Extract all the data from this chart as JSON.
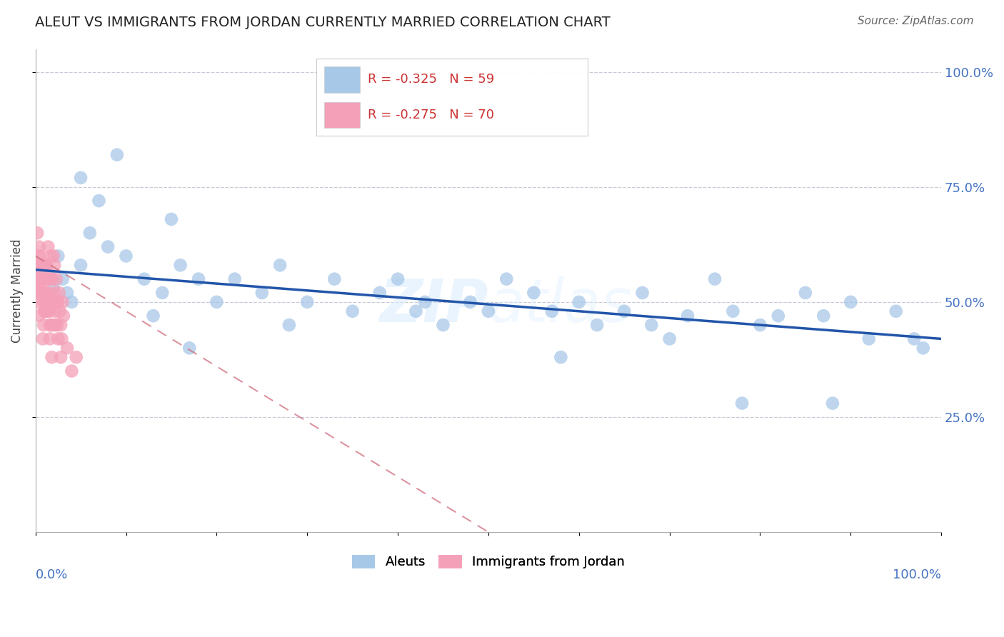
{
  "title": "ALEUT VS IMMIGRANTS FROM JORDAN CURRENTLY MARRIED CORRELATION CHART",
  "source": "Source: ZipAtlas.com",
  "ylabel": "Currently Married",
  "watermark": "ZIPAtlas",
  "legend_blue_r": "R = -0.325",
  "legend_blue_n": "N = 59",
  "legend_pink_r": "R = -0.275",
  "legend_pink_n": "N = 70",
  "blue_color": "#a8c8e8",
  "pink_color": "#f4a0b8",
  "blue_line_color": "#2255aa",
  "pink_line_color": "#cc6677",
  "background_color": "#ffffff",
  "grid_color": "#bbbbcc",
  "aleut_x": [
    0.015,
    0.02,
    0.025,
    0.03,
    0.035,
    0.04,
    0.05,
    0.06,
    0.07,
    0.08,
    0.1,
    0.12,
    0.14,
    0.16,
    0.18,
    0.2,
    0.22,
    0.25,
    0.27,
    0.3,
    0.33,
    0.35,
    0.38,
    0.4,
    0.43,
    0.45,
    0.48,
    0.5,
    0.52,
    0.55,
    0.57,
    0.6,
    0.62,
    0.65,
    0.67,
    0.7,
    0.72,
    0.75,
    0.77,
    0.8,
    0.82,
    0.85,
    0.87,
    0.9,
    0.92,
    0.95,
    0.97,
    0.13,
    0.09,
    0.17,
    0.28,
    0.42,
    0.58,
    0.68,
    0.78,
    0.88,
    0.98,
    0.05,
    0.15
  ],
  "aleut_y": [
    0.56,
    0.53,
    0.6,
    0.55,
    0.52,
    0.5,
    0.58,
    0.65,
    0.72,
    0.62,
    0.6,
    0.55,
    0.52,
    0.58,
    0.55,
    0.5,
    0.55,
    0.52,
    0.58,
    0.5,
    0.55,
    0.48,
    0.52,
    0.55,
    0.5,
    0.45,
    0.5,
    0.48,
    0.55,
    0.52,
    0.48,
    0.5,
    0.45,
    0.48,
    0.52,
    0.42,
    0.47,
    0.55,
    0.48,
    0.45,
    0.47,
    0.52,
    0.47,
    0.5,
    0.42,
    0.48,
    0.42,
    0.47,
    0.82,
    0.4,
    0.45,
    0.48,
    0.38,
    0.45,
    0.28,
    0.28,
    0.4,
    0.77,
    0.68
  ],
  "jordan_x": [
    0.002,
    0.003,
    0.004,
    0.005,
    0.006,
    0.007,
    0.008,
    0.009,
    0.01,
    0.011,
    0.012,
    0.013,
    0.014,
    0.015,
    0.016,
    0.017,
    0.018,
    0.019,
    0.02,
    0.021,
    0.022,
    0.023,
    0.024,
    0.025,
    0.026,
    0.027,
    0.028,
    0.029,
    0.03,
    0.031,
    0.002,
    0.004,
    0.006,
    0.008,
    0.01,
    0.012,
    0.014,
    0.016,
    0.018,
    0.02,
    0.003,
    0.005,
    0.007,
    0.009,
    0.011,
    0.013,
    0.015,
    0.017,
    0.019,
    0.021,
    0.004,
    0.006,
    0.008,
    0.01,
    0.012,
    0.014,
    0.016,
    0.018,
    0.025,
    0.028,
    0.002,
    0.004,
    0.006,
    0.008,
    0.01,
    0.035,
    0.04,
    0.045,
    0.022,
    0.024
  ],
  "jordan_y": [
    0.58,
    0.55,
    0.6,
    0.53,
    0.57,
    0.52,
    0.55,
    0.5,
    0.52,
    0.58,
    0.48,
    0.55,
    0.52,
    0.5,
    0.45,
    0.6,
    0.55,
    0.5,
    0.45,
    0.52,
    0.48,
    0.55,
    0.45,
    0.5,
    0.52,
    0.48,
    0.45,
    0.42,
    0.5,
    0.47,
    0.65,
    0.62,
    0.58,
    0.55,
    0.52,
    0.58,
    0.62,
    0.48,
    0.55,
    0.6,
    0.55,
    0.52,
    0.58,
    0.45,
    0.52,
    0.48,
    0.55,
    0.45,
    0.5,
    0.58,
    0.6,
    0.55,
    0.52,
    0.48,
    0.5,
    0.55,
    0.42,
    0.38,
    0.42,
    0.38,
    0.5,
    0.47,
    0.53,
    0.42,
    0.48,
    0.4,
    0.35,
    0.38,
    0.45,
    0.5
  ],
  "blue_trend_x": [
    0.0,
    1.0
  ],
  "blue_trend_y": [
    0.57,
    0.42
  ],
  "pink_trend_x": [
    0.0,
    0.5
  ],
  "pink_trend_y": [
    0.6,
    0.0
  ],
  "xlim": [
    0.0,
    1.0
  ],
  "ylim": [
    0.0,
    1.05
  ],
  "yticks": [
    0.25,
    0.5,
    0.75,
    1.0
  ],
  "ytick_labels": [
    "25.0%",
    "50.0%",
    "75.0%",
    "100.0%"
  ]
}
